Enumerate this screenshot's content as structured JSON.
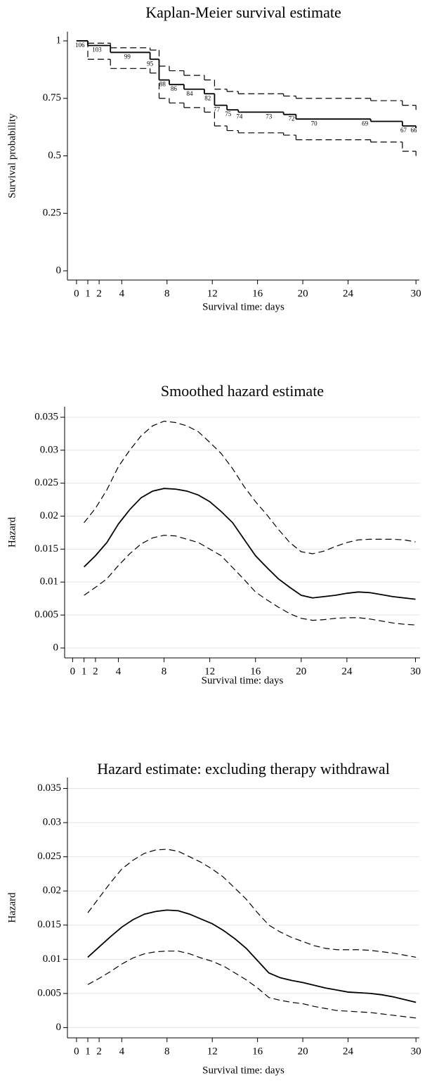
{
  "chart_data": [
    {
      "type": "step",
      "title": "Kaplan-Meier survival estimate",
      "xlabel": "Survival time: days",
      "ylabel": "Survival probability",
      "x": [
        0,
        1,
        3,
        6.5,
        7.3,
        8.2,
        9.5,
        11.3,
        12.2,
        13.3,
        14.3,
        18.3,
        19.4,
        26,
        28.8,
        30
      ],
      "series": [
        {
          "color": "#000000",
          "style": "solid",
          "values": [
            1,
            0.98,
            0.95,
            0.92,
            0.83,
            0.81,
            0.79,
            0.77,
            0.72,
            0.7,
            0.69,
            0.68,
            0.66,
            0.65,
            0.63,
            0.62
          ]
        },
        {
          "color": "#000000",
          "style": "dashed",
          "values": [
            1,
            0.99,
            0.97,
            0.96,
            0.89,
            0.87,
            0.85,
            0.83,
            0.79,
            0.78,
            0.77,
            0.76,
            0.75,
            0.74,
            0.72,
            0.7
          ]
        },
        {
          "color": "#000000",
          "style": "dashed",
          "values": [
            1,
            0.92,
            0.88,
            0.86,
            0.75,
            0.73,
            0.71,
            0.69,
            0.63,
            0.61,
            0.6,
            0.59,
            0.57,
            0.56,
            0.52,
            0.5
          ]
        }
      ],
      "at_risk": {
        "x": [
          0.3,
          1.8,
          4.5,
          6.5,
          7.6,
          8.6,
          10,
          11.6,
          12.4,
          13.4,
          14.4,
          17,
          19,
          21,
          25.5,
          28.9,
          29.8
        ],
        "values": [
          106,
          103,
          99,
          95,
          88,
          86,
          84,
          82,
          77,
          75,
          74,
          73,
          72,
          70,
          69,
          67,
          66
        ]
      },
      "xlim": [
        -0.8,
        30.3
      ],
      "xticks": [
        0,
        1,
        2,
        4,
        8,
        12,
        16,
        20,
        24,
        30
      ],
      "ylim": [
        -0.04,
        1.04
      ],
      "yticks": [
        0,
        0.25,
        0.5,
        0.75,
        1
      ],
      "grid": false
    },
    {
      "type": "line",
      "title": "Smoothed hazard estimate",
      "xlabel": "Survival time: days",
      "ylabel": "Hazard",
      "x": [
        1,
        2,
        3,
        4,
        5,
        6,
        7,
        8,
        9,
        10,
        11,
        12,
        13,
        14,
        15,
        16,
        17,
        18,
        19,
        20,
        21,
        22,
        23,
        24,
        25,
        26,
        27,
        28,
        29,
        30
      ],
      "series": [
        {
          "color": "#000000",
          "style": "solid",
          "values": [
            0.0123,
            0.014,
            0.016,
            0.0188,
            0.021,
            0.0228,
            0.0238,
            0.0242,
            0.0241,
            0.0238,
            0.0232,
            0.0222,
            0.0207,
            0.019,
            0.0165,
            0.014,
            0.0122,
            0.0105,
            0.0092,
            0.008,
            0.0076,
            0.0078,
            0.008,
            0.0083,
            0.0085,
            0.0084,
            0.0081,
            0.0078,
            0.0076,
            0.0074
          ]
        },
        {
          "color": "#000000",
          "style": "dashed",
          "values": [
            0.019,
            0.0212,
            0.024,
            0.0275,
            0.03,
            0.0322,
            0.0337,
            0.0344,
            0.0342,
            0.0337,
            0.0328,
            0.0312,
            0.0295,
            0.0272,
            0.0245,
            0.0222,
            0.0202,
            0.018,
            0.016,
            0.0146,
            0.0143,
            0.0147,
            0.0154,
            0.016,
            0.0164,
            0.0165,
            0.0165,
            0.0165,
            0.0164,
            0.0161
          ]
        },
        {
          "color": "#000000",
          "style": "dashed",
          "values": [
            0.008,
            0.0092,
            0.0105,
            0.0125,
            0.0143,
            0.0158,
            0.0167,
            0.0171,
            0.017,
            0.0165,
            0.016,
            0.015,
            0.014,
            0.0122,
            0.0104,
            0.0085,
            0.0073,
            0.0062,
            0.0052,
            0.0045,
            0.0042,
            0.0043,
            0.0045,
            0.0046,
            0.0046,
            0.0044,
            0.0041,
            0.0038,
            0.0036,
            0.0035
          ]
        }
      ],
      "xlim": [
        -0.7,
        30.4
      ],
      "xticks": [
        0,
        1,
        2,
        4,
        8,
        12,
        16,
        20,
        24,
        30
      ],
      "ylim": [
        -0.0015,
        0.0366
      ],
      "yticks": [
        0,
        0.005,
        0.01,
        0.015,
        0.02,
        0.025,
        0.03,
        0.035
      ],
      "grid": true
    },
    {
      "type": "line",
      "title": "Hazard estimate: excluding therapy withdrawal",
      "xlabel": "Survival time: days",
      "ylabel": "Hazard",
      "x": [
        1,
        2,
        3,
        4,
        5,
        6,
        7,
        8,
        9,
        10,
        11,
        12,
        13,
        14,
        15,
        16,
        17,
        18,
        19,
        20,
        21,
        22,
        23,
        24,
        25,
        26,
        27,
        28,
        29,
        30
      ],
      "series": [
        {
          "color": "#000000",
          "style": "solid",
          "values": [
            0.0103,
            0.0118,
            0.0133,
            0.0147,
            0.0158,
            0.0166,
            0.017,
            0.0172,
            0.0171,
            0.0166,
            0.0159,
            0.0152,
            0.0142,
            0.013,
            0.0116,
            0.0098,
            0.008,
            0.0073,
            0.0069,
            0.0066,
            0.0062,
            0.0058,
            0.0055,
            0.0052,
            0.0051,
            0.005,
            0.0048,
            0.0045,
            0.0041,
            0.0037
          ]
        },
        {
          "color": "#000000",
          "style": "dashed",
          "values": [
            0.0168,
            0.019,
            0.0212,
            0.0232,
            0.0245,
            0.0255,
            0.026,
            0.0261,
            0.0258,
            0.025,
            0.0242,
            0.0232,
            0.022,
            0.0204,
            0.0188,
            0.0168,
            0.015,
            0.014,
            0.0132,
            0.0126,
            0.012,
            0.0116,
            0.0114,
            0.0114,
            0.0114,
            0.0113,
            0.0111,
            0.0109,
            0.0106,
            0.0103
          ]
        },
        {
          "color": "#000000",
          "style": "dashed",
          "values": [
            0.0063,
            0.0072,
            0.0082,
            0.0093,
            0.0102,
            0.0108,
            0.0111,
            0.0112,
            0.0112,
            0.0108,
            0.0102,
            0.0097,
            0.009,
            0.008,
            0.007,
            0.0058,
            0.0044,
            0.004,
            0.0037,
            0.0035,
            0.0031,
            0.0028,
            0.0025,
            0.0024,
            0.0023,
            0.0022,
            0.002,
            0.0018,
            0.0016,
            0.0014
          ]
        }
      ],
      "xlim": [
        -0.8,
        30.3
      ],
      "xticks": [
        0,
        1,
        2,
        4,
        8,
        12,
        16,
        20,
        24,
        30
      ],
      "ylim": [
        -0.0015,
        0.0366
      ],
      "yticks": [
        0,
        0.005,
        0.01,
        0.015,
        0.02,
        0.025,
        0.03,
        0.035
      ],
      "grid": true
    }
  ]
}
